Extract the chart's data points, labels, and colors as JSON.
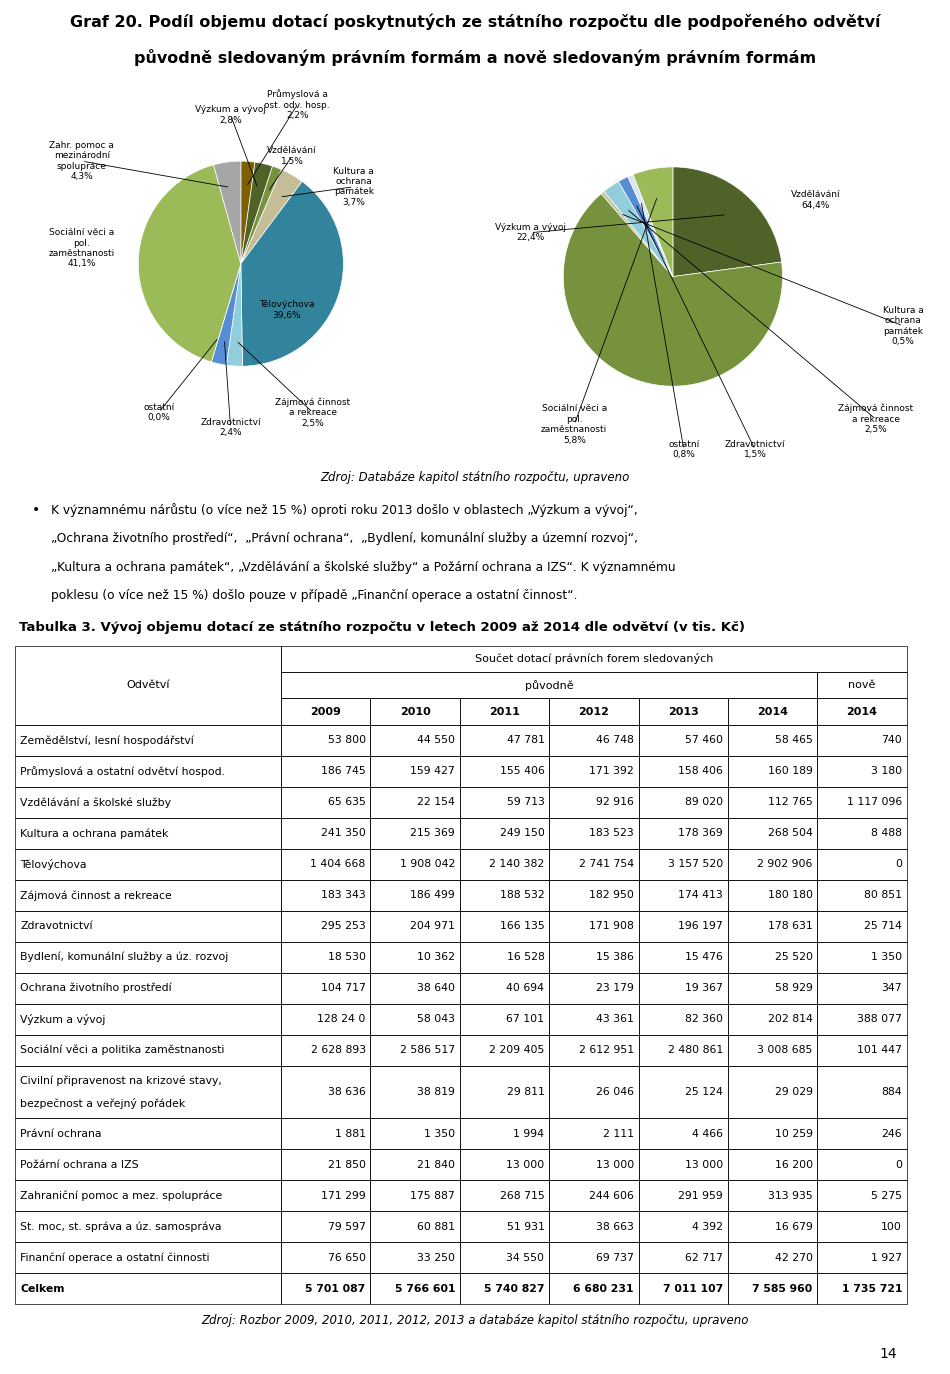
{
  "title_line1": "Graf 20. Podíl objemu dotací poskytnutých ze státního rozpočtu dle podpořeného odvětví",
  "title_line2": "původně sledovaným právním formám a nově sledovaným právním formám",
  "pie1_values": [
    2.2,
    2.8,
    1.5,
    3.7,
    39.6,
    2.5,
    2.4,
    0.0,
    41.1,
    4.3
  ],
  "pie1_colors": [
    "#7f6000",
    "#4f6228",
    "#76923c",
    "#c4bd97",
    "#31849b",
    "#92cddc",
    "#558ed5",
    "#dbe5f1",
    "#9bbb59",
    "#a6a6a6"
  ],
  "pie2_values": [
    22.4,
    64.4,
    0.5,
    2.5,
    1.5,
    0.8,
    5.8
  ],
  "pie2_colors": [
    "#4f6228",
    "#76923c",
    "#c4bd97",
    "#92cddc",
    "#558ed5",
    "#dbe5f1",
    "#9bbb59"
  ],
  "source1": "Zdroj: Databáze kapitol státního rozpočtu, upraveno",
  "bullet_line1": "K významnému nárůstu (o více než 15 %) oproti roku 2013 došlo v oblastech „Výzkum a vývoj“,",
  "bullet_line2": "„Ochrana životního prostředí“,  „Právní ochrana“,  „Bydlení, komunální služby a územní rozvoj“,",
  "bullet_line3": "„Kultura a ochrana památek“, „Vzdělávání a školské služby“ a Požární ochrana a IZS“. K významnému",
  "bullet_line4": "poklesu (o více než 15 %) došlo pouze v případě „Finanční operace a ostatní činnost“.",
  "table_title": "Tabulka 3. Vývoj objemu dotací ze státního rozpočtu v letech 2009 až 2014 dle odvětví (v tis. Kč)",
  "rows": [
    [
      "Zemědělství, lesní hospodářství",
      "53 800",
      "44 550",
      "47 781",
      "46 748",
      "57 460",
      "58 465",
      "740"
    ],
    [
      "Průmyslová a ostatní odvětví hospod.",
      "186 745",
      "159 427",
      "155 406",
      "171 392",
      "158 406",
      "160 189",
      "3 180"
    ],
    [
      "Vzdělávání a školské služby",
      "65 635",
      "22 154",
      "59 713",
      "92 916",
      "89 020",
      "112 765",
      "1 117 096"
    ],
    [
      "Kultura a ochrana památek",
      "241 350",
      "215 369",
      "249 150",
      "183 523",
      "178 369",
      "268 504",
      "8 488"
    ],
    [
      "Tělovýchova",
      "1 404 668",
      "1 908 042",
      "2 140 382",
      "2 741 754",
      "3 157 520",
      "2 902 906",
      "0"
    ],
    [
      "Zájmová činnost a rekreace",
      "183 343",
      "186 499",
      "188 532",
      "182 950",
      "174 413",
      "180 180",
      "80 851"
    ],
    [
      "Zdravotnictví",
      "295 253",
      "204 971",
      "166 135",
      "171 908",
      "196 197",
      "178 631",
      "25 714"
    ],
    [
      "Bydlení, komunální služby a úz. rozvoj",
      "18 530",
      "10 362",
      "16 528",
      "15 386",
      "15 476",
      "25 520",
      "1 350"
    ],
    [
      "Ochrana životního prostředí",
      "104 717",
      "38 640",
      "40 694",
      "23 179",
      "19 367",
      "58 929",
      "347"
    ],
    [
      "Výzkum a vývoj",
      "128 24 0",
      "58 043",
      "67 101",
      "43 361",
      "82 360",
      "202 814",
      "388 077"
    ],
    [
      "Sociální věci a politika zaměstnanosti",
      "2 628 893",
      "2 586 517",
      "2 209 405",
      "2 612 951",
      "2 480 861",
      "3 008 685",
      "101 447"
    ],
    [
      "Civilní připravenost na krizové stavy,|bezpečnost a veřejný pořádek",
      "38 636",
      "38 819",
      "29 811",
      "26 046",
      "25 124",
      "29 029",
      "884"
    ],
    [
      "Právní ochrana",
      "1 881",
      "1 350",
      "1 994",
      "2 111",
      "4 466",
      "10 259",
      "246"
    ],
    [
      "Požární ochrana a IZS",
      "21 850",
      "21 840",
      "13 000",
      "13 000",
      "13 000",
      "16 200",
      "0"
    ],
    [
      "Zahraniční pomoc a mez. spolupráce",
      "171 299",
      "175 887",
      "268 715",
      "244 606",
      "291 959",
      "313 935",
      "5 275"
    ],
    [
      "St. moc, st. správa a úz. samospráva",
      "79 597",
      "60 881",
      "51 931",
      "38 663",
      "4 392",
      "16 679",
      "100"
    ],
    [
      "Finanční operace a ostatní činnosti",
      "76 650",
      "33 250",
      "34 550",
      "69 737",
      "62 717",
      "42 270",
      "1 927"
    ],
    [
      "Celkem",
      "5 701 087",
      "5 766 601",
      "5 740 827",
      "6 680 231",
      "7 011 107",
      "7 585 960",
      "1 735 721"
    ]
  ],
  "source2": "Zdroj: Rozbor 2009, 2010, 2011, 2012, 2013 a databáze kapitol státního rozpočtu, upraveno",
  "page_number": "14"
}
